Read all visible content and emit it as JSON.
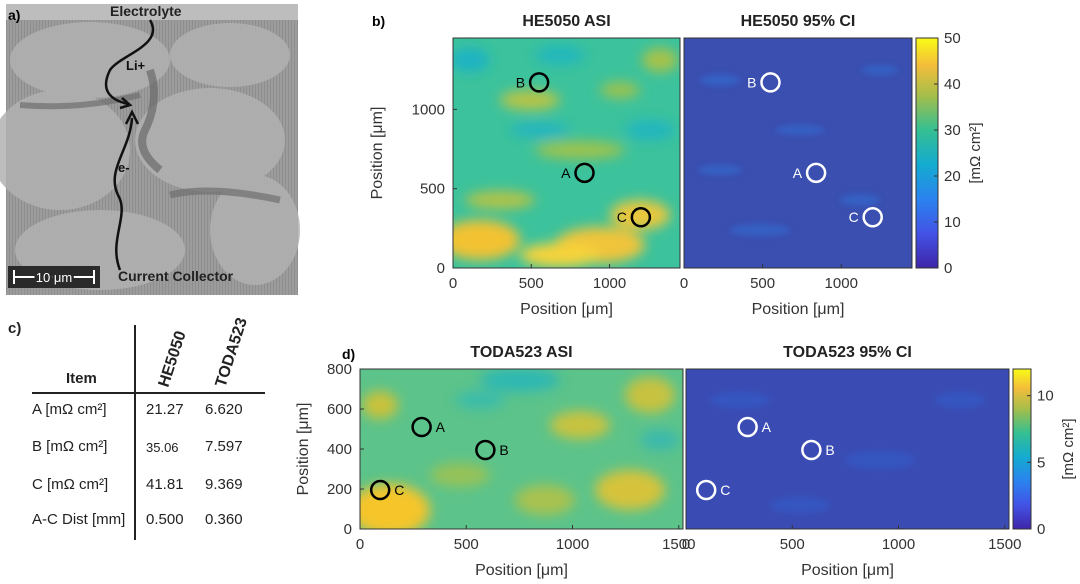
{
  "panel_labels": {
    "a": "a)",
    "b": "b)",
    "c": "c)",
    "d": "d)"
  },
  "sem": {
    "labels": [
      "Electrolyte",
      "Li+",
      "e-",
      "Current Collector"
    ],
    "scalebar": "10 μm"
  },
  "table": {
    "header_item": "Item",
    "columns": [
      "HE5050",
      "TODA523"
    ],
    "rows": [
      {
        "item": "A [mΩ cm²]",
        "values": [
          "21.27",
          "6.620"
        ]
      },
      {
        "item": "B [mΩ cm²]",
        "values": [
          "35.06",
          "7.597"
        ]
      },
      {
        "item": "C [mΩ cm²]",
        "values": [
          "41.81",
          "9.369"
        ]
      },
      {
        "item": "A-C Dist [mm]",
        "values": [
          "0.500",
          "0.360"
        ]
      }
    ]
  },
  "colors": {
    "asi_high": "#f5c51f",
    "asi_mid": "#2ebd9a",
    "ci_low": "#3a4fb0",
    "marker_dark": "#000000",
    "marker_light": "#ffffff"
  },
  "chart_data": [
    {
      "type": "heatmap",
      "title": "HE5050 ASI",
      "xlabel": "Position [μm]",
      "ylabel": "Position [μm]",
      "xlim": [
        0,
        1450
      ],
      "ylim": [
        0,
        1450
      ],
      "xticks": [
        0,
        500,
        1000
      ],
      "yticks": [
        0,
        500,
        1000
      ],
      "clim": [
        0,
        50
      ],
      "points": [
        {
          "label": "B",
          "x": 550,
          "y": 1170
        },
        {
          "label": "A",
          "x": 840,
          "y": 600
        },
        {
          "label": "C",
          "x": 1200,
          "y": 320
        }
      ]
    },
    {
      "type": "heatmap",
      "title": "HE5050 95% CI",
      "xlabel": "Position [μm]",
      "xlim": [
        0,
        1450
      ],
      "ylim": [
        0,
        1450
      ],
      "xticks": [
        0,
        500,
        1000
      ],
      "clim": [
        0,
        50
      ],
      "colorbar": {
        "label": "[mΩ cm²]",
        "ticks": [
          0,
          10,
          20,
          30,
          40,
          50
        ]
      },
      "points": [
        {
          "label": "B",
          "x": 550,
          "y": 1170
        },
        {
          "label": "A",
          "x": 840,
          "y": 600
        },
        {
          "label": "C",
          "x": 1200,
          "y": 320
        }
      ]
    },
    {
      "type": "heatmap",
      "title": "TODA523 ASI",
      "xlabel": "Position [μm]",
      "ylabel": "Position [μm]",
      "xlim": [
        0,
        1520
      ],
      "ylim": [
        0,
        800
      ],
      "xticks": [
        0,
        500,
        1000,
        1500
      ],
      "yticks": [
        0,
        200,
        400,
        600,
        800
      ],
      "clim": [
        0,
        12
      ],
      "points": [
        {
          "label": "A",
          "x": 290,
          "y": 510
        },
        {
          "label": "B",
          "x": 590,
          "y": 395
        },
        {
          "label": "C",
          "x": 95,
          "y": 195
        }
      ]
    },
    {
      "type": "heatmap",
      "title": "TODA523 95% CI",
      "xlabel": "Position [μm]",
      "xlim": [
        0,
        1520
      ],
      "ylim": [
        0,
        800
      ],
      "xticks": [
        0,
        500,
        1000,
        1500
      ],
      "clim": [
        0,
        12
      ],
      "colorbar": {
        "label": "[mΩ cm²]",
        "ticks": [
          0,
          5,
          10
        ]
      },
      "points": [
        {
          "label": "A",
          "x": 290,
          "y": 510
        },
        {
          "label": "B",
          "x": 590,
          "y": 395
        },
        {
          "label": "C",
          "x": 95,
          "y": 195
        }
      ]
    }
  ]
}
